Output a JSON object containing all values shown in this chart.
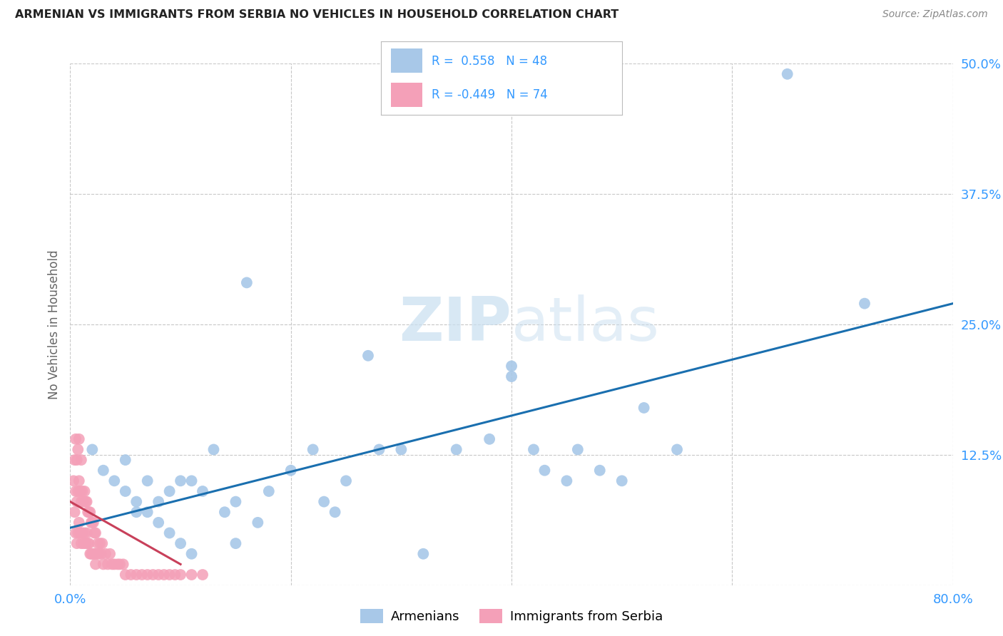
{
  "title": "ARMENIAN VS IMMIGRANTS FROM SERBIA NO VEHICLES IN HOUSEHOLD CORRELATION CHART",
  "source": "Source: ZipAtlas.com",
  "ylabel": "No Vehicles in Household",
  "xlim": [
    0.0,
    0.8
  ],
  "ylim": [
    0.0,
    0.5
  ],
  "xticks": [
    0.0,
    0.2,
    0.4,
    0.6,
    0.8
  ],
  "yticks": [
    0.0,
    0.125,
    0.25,
    0.375,
    0.5
  ],
  "armenian_R": 0.558,
  "armenian_N": 48,
  "serbia_R": -0.449,
  "serbia_N": 74,
  "armenian_color": "#a8c8e8",
  "armenia_line_color": "#1a6faf",
  "serbia_color": "#f4a0b8",
  "serbia_line_color": "#c8405a",
  "grid_color": "#c8c8c8",
  "watermark_color": "#c8dff0",
  "armenian_x": [
    0.02,
    0.03,
    0.04,
    0.05,
    0.05,
    0.06,
    0.06,
    0.07,
    0.07,
    0.08,
    0.08,
    0.09,
    0.09,
    0.1,
    0.1,
    0.11,
    0.11,
    0.12,
    0.13,
    0.14,
    0.15,
    0.15,
    0.16,
    0.17,
    0.18,
    0.2,
    0.22,
    0.23,
    0.24,
    0.25,
    0.27,
    0.28,
    0.3,
    0.32,
    0.35,
    0.38,
    0.4,
    0.42,
    0.43,
    0.45,
    0.46,
    0.48,
    0.5,
    0.52,
    0.55,
    0.65,
    0.72,
    0.4
  ],
  "armenian_y": [
    0.13,
    0.11,
    0.1,
    0.09,
    0.12,
    0.08,
    0.07,
    0.1,
    0.07,
    0.06,
    0.08,
    0.05,
    0.09,
    0.04,
    0.1,
    0.03,
    0.1,
    0.09,
    0.13,
    0.07,
    0.04,
    0.08,
    0.29,
    0.06,
    0.09,
    0.11,
    0.13,
    0.08,
    0.07,
    0.1,
    0.22,
    0.13,
    0.13,
    0.03,
    0.13,
    0.14,
    0.21,
    0.13,
    0.11,
    0.1,
    0.13,
    0.11,
    0.1,
    0.17,
    0.13,
    0.49,
    0.27,
    0.2
  ],
  "serbia_x": [
    0.003,
    0.004,
    0.004,
    0.005,
    0.005,
    0.005,
    0.006,
    0.006,
    0.006,
    0.007,
    0.007,
    0.007,
    0.008,
    0.008,
    0.008,
    0.009,
    0.009,
    0.01,
    0.01,
    0.01,
    0.011,
    0.011,
    0.012,
    0.012,
    0.013,
    0.013,
    0.014,
    0.014,
    0.015,
    0.015,
    0.016,
    0.016,
    0.017,
    0.017,
    0.018,
    0.018,
    0.019,
    0.019,
    0.02,
    0.02,
    0.021,
    0.021,
    0.022,
    0.022,
    0.023,
    0.023,
    0.024,
    0.025,
    0.026,
    0.027,
    0.028,
    0.029,
    0.03,
    0.032,
    0.034,
    0.036,
    0.038,
    0.04,
    0.043,
    0.045,
    0.048,
    0.05,
    0.055,
    0.06,
    0.065,
    0.07,
    0.075,
    0.08,
    0.085,
    0.09,
    0.095,
    0.1,
    0.11,
    0.12
  ],
  "serbia_y": [
    0.1,
    0.07,
    0.12,
    0.05,
    0.09,
    0.14,
    0.04,
    0.08,
    0.12,
    0.05,
    0.09,
    0.13,
    0.06,
    0.1,
    0.14,
    0.05,
    0.09,
    0.04,
    0.08,
    0.12,
    0.05,
    0.09,
    0.04,
    0.08,
    0.05,
    0.09,
    0.04,
    0.08,
    0.05,
    0.08,
    0.04,
    0.07,
    0.04,
    0.07,
    0.03,
    0.07,
    0.03,
    0.06,
    0.03,
    0.06,
    0.03,
    0.06,
    0.03,
    0.05,
    0.02,
    0.05,
    0.03,
    0.04,
    0.03,
    0.04,
    0.03,
    0.04,
    0.02,
    0.03,
    0.02,
    0.03,
    0.02,
    0.02,
    0.02,
    0.02,
    0.02,
    0.01,
    0.01,
    0.01,
    0.01,
    0.01,
    0.01,
    0.01,
    0.01,
    0.01,
    0.01,
    0.01,
    0.01,
    0.01
  ],
  "armenia_trend_x": [
    0.0,
    0.8
  ],
  "armenia_trend_y": [
    0.055,
    0.27
  ],
  "serbia_trend_x": [
    0.0,
    0.1
  ],
  "serbia_trend_y": [
    0.08,
    0.02
  ]
}
